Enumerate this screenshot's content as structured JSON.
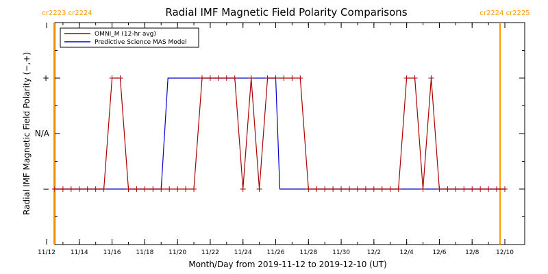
{
  "chart_data": {
    "type": "line",
    "title": "Radial IMF Magnetic Field Polarity Comparisons",
    "xlabel": "Month/Day from 2019-11-12 to 2019-12-10 (UT)",
    "ylabel": "Radial IMF Magnetic Field Polarity (−,+)",
    "xlim": [
      "2019-11-12",
      "2019-12-10"
    ],
    "x_ticks": [
      "11/12",
      "11/14",
      "11/16",
      "11/18",
      "11/20",
      "11/22",
      "11/24",
      "11/26",
      "11/28",
      "11/30",
      "12/2",
      "12/4",
      "12/6",
      "12/8",
      "12/10"
    ],
    "x_tick_dates": [
      "2019-11-12",
      "2019-11-14",
      "2019-11-16",
      "2019-11-18",
      "2019-11-20",
      "2019-11-22",
      "2019-11-24",
      "2019-11-26",
      "2019-11-28",
      "2019-11-30",
      "2019-12-02",
      "2019-12-04",
      "2019-12-06",
      "2019-12-08",
      "2019-12-10"
    ],
    "y_categories": [
      "−",
      "N/A",
      "+"
    ],
    "y_category_values": [
      -1,
      0,
      1
    ],
    "ylim": [
      -2,
      2
    ],
    "grid": false,
    "legend_position": "top-left",
    "carrington_markers": [
      {
        "label": "cr2223 cr2224",
        "date": "2019-11-12T11:00",
        "color": "#ff9900",
        "side": "left"
      },
      {
        "label": "cr2224 cr2225",
        "date": "2019-12-09T17:00",
        "color": "#ff9900",
        "side": "right"
      }
    ],
    "series": [
      {
        "name": "OMNI_M (12-hr avg)",
        "color": "#aa0000",
        "marker": "+",
        "x": [
          "2019-11-12T12:00",
          "2019-11-13T00:00",
          "2019-11-13T12:00",
          "2019-11-14T00:00",
          "2019-11-14T12:00",
          "2019-11-15T00:00",
          "2019-11-15T12:00",
          "2019-11-16T00:00",
          "2019-11-16T12:00",
          "2019-11-17T00:00",
          "2019-11-17T12:00",
          "2019-11-18T00:00",
          "2019-11-18T12:00",
          "2019-11-19T00:00",
          "2019-11-19T12:00",
          "2019-11-20T00:00",
          "2019-11-20T12:00",
          "2019-11-21T00:00",
          "2019-11-21T12:00",
          "2019-11-22T00:00",
          "2019-11-22T12:00",
          "2019-11-23T00:00",
          "2019-11-23T12:00",
          "2019-11-24T00:00",
          "2019-11-24T12:00",
          "2019-11-25T00:00",
          "2019-11-25T12:00",
          "2019-11-26T00:00",
          "2019-11-26T12:00",
          "2019-11-27T00:00",
          "2019-11-27T12:00",
          "2019-11-28T00:00",
          "2019-11-28T12:00",
          "2019-11-29T00:00",
          "2019-11-29T12:00",
          "2019-11-30T00:00",
          "2019-11-30T12:00",
          "2019-12-01T00:00",
          "2019-12-01T12:00",
          "2019-12-02T00:00",
          "2019-12-02T12:00",
          "2019-12-03T00:00",
          "2019-12-03T12:00",
          "2019-12-04T00:00",
          "2019-12-04T12:00",
          "2019-12-05T00:00",
          "2019-12-05T12:00",
          "2019-12-06T00:00",
          "2019-12-06T12:00",
          "2019-12-07T00:00",
          "2019-12-07T12:00",
          "2019-12-08T00:00",
          "2019-12-08T12:00",
          "2019-12-09T00:00",
          "2019-12-09T12:00",
          "2019-12-10T00:00"
        ],
        "y": [
          -1,
          -1,
          -1,
          -1,
          -1,
          -1,
          -1,
          1,
          1,
          -1,
          -1,
          -1,
          -1,
          -1,
          -1,
          -1,
          -1,
          -1,
          1,
          1,
          1,
          1,
          1,
          -1,
          1,
          -1,
          1,
          1,
          1,
          1,
          1,
          -1,
          -1,
          -1,
          -1,
          -1,
          -1,
          -1,
          -1,
          -1,
          -1,
          -1,
          -1,
          1,
          1,
          -1,
          1,
          -1,
          -1,
          -1,
          -1,
          -1,
          -1,
          -1,
          -1,
          -1
        ]
      },
      {
        "name": "Predictive Science MAS Model",
        "color": "#0000cc",
        "x": [
          "2019-11-12T11:00",
          "2019-11-19T00:00",
          "2019-11-19T10:00",
          "2019-11-26T00:00",
          "2019-11-26T06:00",
          "2019-12-10T00:00"
        ],
        "y": [
          -1,
          -1,
          1,
          1,
          -1,
          -1
        ]
      }
    ]
  }
}
